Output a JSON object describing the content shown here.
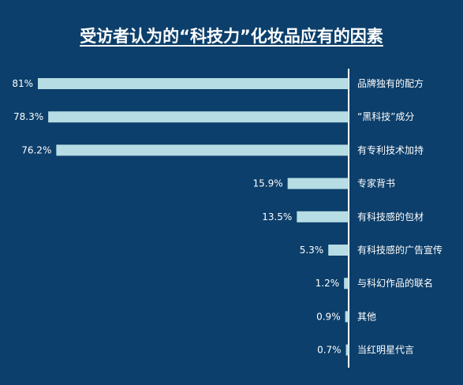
{
  "chart_data": {
    "type": "bar",
    "orientation": "horizontal",
    "title": "受访者认为的“科技力”化妆品应有的因素",
    "xlabel": "",
    "ylabel": "",
    "xlim": [
      0,
      81
    ],
    "value_suffix": "%",
    "categories": [
      "品牌独有的配方",
      "“黑科技”成分",
      "有专利技术加持",
      "专家背书",
      "有科技感的包材",
      "有科技感的广告宣传",
      "与科幻作品的联名",
      "其他",
      "当红明星代言"
    ],
    "values": [
      81,
      78.3,
      76.2,
      15.9,
      13.5,
      5.3,
      1.2,
      0.9,
      0.7
    ],
    "value_labels": [
      "81%",
      "78.3%",
      "76.2%",
      "15.9%",
      "13.5%",
      "5.3%",
      "1.2%",
      "0.9%",
      "0.7%"
    ],
    "colors": {
      "background": "#0c3f6b",
      "bar": "#b6dde4",
      "text": "#ffffff"
    }
  }
}
